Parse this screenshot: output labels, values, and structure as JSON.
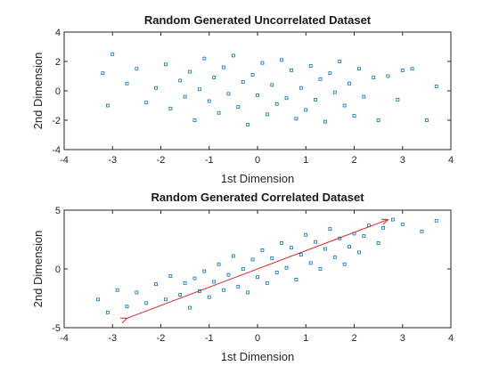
{
  "chart_data": [
    {
      "type": "scatter",
      "title": "Random Generated Uncorrelated Dataset",
      "xlabel": "1st Dimension",
      "ylabel": "2nd Dimension",
      "xlim": [
        -4,
        4
      ],
      "ylim": [
        -4,
        4
      ],
      "xticks": [
        "-4",
        "-3",
        "-2",
        "-1",
        "0",
        "1",
        "2",
        "3",
        "4"
      ],
      "yticks": [
        "-4",
        "-2",
        "0",
        "2",
        "4"
      ],
      "marker_color": "#0072BD",
      "series": [
        {
          "values": [
            [
              -3.2,
              1.2
            ],
            [
              -3.0,
              2.5
            ],
            [
              -3.1,
              -1.0
            ],
            [
              -2.7,
              0.5
            ],
            [
              -2.5,
              1.5
            ],
            [
              -2.3,
              -0.8
            ],
            [
              -2.1,
              0.2
            ],
            [
              -1.9,
              1.8
            ],
            [
              -1.8,
              -1.2
            ],
            [
              -1.6,
              0.7
            ],
            [
              -1.5,
              -0.4
            ],
            [
              -1.4,
              1.3
            ],
            [
              -1.3,
              -2.0
            ],
            [
              -1.2,
              0.1
            ],
            [
              -1.1,
              2.2
            ],
            [
              -1.0,
              -0.7
            ],
            [
              -0.9,
              0.9
            ],
            [
              -0.8,
              -1.5
            ],
            [
              -0.7,
              1.6
            ],
            [
              -0.6,
              -0.2
            ],
            [
              -0.5,
              2.4
            ],
            [
              -0.4,
              -1.1
            ],
            [
              -0.3,
              0.6
            ],
            [
              -0.2,
              -2.3
            ],
            [
              -0.1,
              1.1
            ],
            [
              0.0,
              -0.3
            ],
            [
              0.1,
              1.9
            ],
            [
              0.2,
              -1.6
            ],
            [
              0.3,
              0.4
            ],
            [
              0.4,
              -0.9
            ],
            [
              0.5,
              2.1
            ],
            [
              0.6,
              -0.5
            ],
            [
              0.7,
              1.4
            ],
            [
              0.8,
              -1.9
            ],
            [
              0.9,
              0.2
            ],
            [
              1.0,
              -1.3
            ],
            [
              1.1,
              1.7
            ],
            [
              1.2,
              -0.6
            ],
            [
              1.3,
              0.8
            ],
            [
              1.4,
              -2.1
            ],
            [
              1.5,
              1.2
            ],
            [
              1.6,
              -0.1
            ],
            [
              1.7,
              2.0
            ],
            [
              1.8,
              -1.0
            ],
            [
              1.9,
              0.5
            ],
            [
              2.0,
              -1.7
            ],
            [
              2.1,
              1.5
            ],
            [
              2.2,
              -0.4
            ],
            [
              2.4,
              0.9
            ],
            [
              2.5,
              -2.0
            ],
            [
              2.7,
              1.0
            ],
            [
              2.9,
              -0.6
            ],
            [
              3.0,
              1.4
            ],
            [
              3.2,
              1.5
            ],
            [
              3.5,
              -2.0
            ],
            [
              3.7,
              0.3
            ]
          ]
        }
      ]
    },
    {
      "type": "scatter",
      "title": "Random Generated Correlated Dataset",
      "xlabel": "1st Dimension",
      "ylabel": "2nd Dimension",
      "xlim": [
        -4,
        4
      ],
      "ylim": [
        -5,
        5
      ],
      "xticks": [
        "-4",
        "-3",
        "-2",
        "-1",
        "0",
        "1",
        "2",
        "3",
        "4"
      ],
      "yticks": [
        "-5",
        "0",
        "5"
      ],
      "marker_color": "#0072BD",
      "arrow_color": "#D62728",
      "arrow": {
        "from": [
          -2.7,
          -4.2
        ],
        "to": [
          2.7,
          4.2
        ]
      },
      "series": [
        {
          "values": [
            [
              -3.3,
              -2.6
            ],
            [
              -3.1,
              -3.7
            ],
            [
              -2.9,
              -1.8
            ],
            [
              -2.7,
              -3.2
            ],
            [
              -2.5,
              -2.0
            ],
            [
              -2.3,
              -2.9
            ],
            [
              -2.1,
              -1.3
            ],
            [
              -1.9,
              -2.6
            ],
            [
              -1.8,
              -0.6
            ],
            [
              -1.6,
              -2.2
            ],
            [
              -1.5,
              -1.2
            ],
            [
              -1.4,
              -3.3
            ],
            [
              -1.3,
              -0.8
            ],
            [
              -1.2,
              -1.9
            ],
            [
              -1.1,
              -0.2
            ],
            [
              -1.0,
              -2.4
            ],
            [
              -0.9,
              -1.1
            ],
            [
              -0.8,
              0.4
            ],
            [
              -0.7,
              -1.8
            ],
            [
              -0.6,
              -0.5
            ],
            [
              -0.5,
              1.1
            ],
            [
              -0.4,
              -1.5
            ],
            [
              -0.3,
              0.0
            ],
            [
              -0.2,
              -2.0
            ],
            [
              -0.1,
              0.8
            ],
            [
              0.0,
              -0.7
            ],
            [
              0.1,
              1.6
            ],
            [
              0.2,
              -1.2
            ],
            [
              0.3,
              0.9
            ],
            [
              0.4,
              -0.3
            ],
            [
              0.5,
              2.2
            ],
            [
              0.6,
              0.1
            ],
            [
              0.7,
              1.8
            ],
            [
              0.8,
              -0.9
            ],
            [
              0.9,
              1.2
            ],
            [
              1.0,
              2.9
            ],
            [
              1.1,
              0.5
            ],
            [
              1.2,
              2.3
            ],
            [
              1.3,
              0.0
            ],
            [
              1.4,
              1.7
            ],
            [
              1.5,
              3.4
            ],
            [
              1.6,
              1.0
            ],
            [
              1.7,
              2.6
            ],
            [
              1.8,
              0.4
            ],
            [
              1.9,
              1.9
            ],
            [
              2.0,
              3.0
            ],
            [
              2.1,
              1.4
            ],
            [
              2.2,
              2.8
            ],
            [
              2.3,
              3.7
            ],
            [
              2.5,
              2.2
            ],
            [
              2.6,
              3.5
            ],
            [
              2.8,
              4.2
            ],
            [
              3.0,
              3.8
            ],
            [
              3.4,
              3.2
            ],
            [
              3.7,
              4.1
            ]
          ]
        }
      ]
    }
  ]
}
